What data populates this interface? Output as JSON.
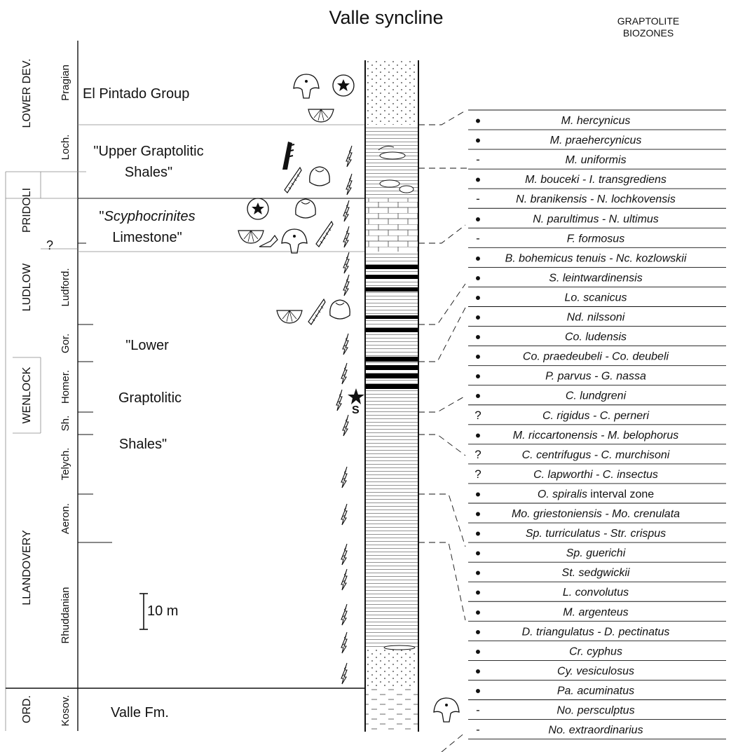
{
  "title": "Valle syncline",
  "biozones_header": [
    "GRAPTOLITE",
    "BIOZONES"
  ],
  "series": [
    {
      "id": "ord",
      "label": "ORD."
    },
    {
      "id": "llandovery",
      "label": "LLANDOVERY"
    },
    {
      "id": "wenlock",
      "label": "WENLOCK"
    },
    {
      "id": "ludlow",
      "label": "LUDLOW"
    },
    {
      "id": "pridoli",
      "label": "PRIDOLI"
    },
    {
      "id": "lower-dev",
      "label": "LOWER DEV."
    }
  ],
  "stages": [
    {
      "id": "kosov",
      "label": "Kosov."
    },
    {
      "id": "rhuddanian",
      "label": "Rhuddanian"
    },
    {
      "id": "aeron",
      "label": "Aeron."
    },
    {
      "id": "telych",
      "label": "Telych."
    },
    {
      "id": "sh",
      "label": "Sh."
    },
    {
      "id": "homer",
      "label": "Homer."
    },
    {
      "id": "gor",
      "label": "Gor."
    },
    {
      "id": "ludford",
      "label": "Ludford."
    },
    {
      "id": "loch",
      "label": "Loch."
    },
    {
      "id": "pragian",
      "label": "Pragian"
    }
  ],
  "units": {
    "el_pintado": "El Pintado Group",
    "upper_grapt_1": "\"Upper Graptolitic",
    "upper_grapt_2": "Shales\"",
    "scypho_quote": "\"",
    "scypho_name": "Scyphocrinites",
    "scypho_2": "Limestone\"",
    "lower_1": "\"Lower",
    "lower_2": "Graptolitic",
    "lower_3": "Shales\"",
    "valle_fm": "Valle Fm."
  },
  "question_mark": "?",
  "scale_label": "10 m",
  "sample_label": "S",
  "biozones": [
    {
      "marker": "•",
      "name": "M. hercynicus"
    },
    {
      "marker": "•",
      "name": "M. praehercynicus"
    },
    {
      "marker": "-",
      "name": "M. uniformis"
    },
    {
      "marker": "•",
      "name": "M. bouceki - I. transgrediens"
    },
    {
      "marker": "-",
      "name": "N. branikensis - N. lochkovensis"
    },
    {
      "marker": "•",
      "name": "N. parultimus - N. ultimus"
    },
    {
      "marker": "-",
      "name": "F. formosus"
    },
    {
      "marker": "•",
      "name": "B. bohemicus tenuis - Nc. kozlowskii"
    },
    {
      "marker": "•",
      "name": "S. leintwardinensis"
    },
    {
      "marker": "•",
      "name": "Lo. scanicus"
    },
    {
      "marker": "•",
      "name": "Nd. nilssoni"
    },
    {
      "marker": "•",
      "name": "Co. ludensis"
    },
    {
      "marker": "•",
      "name": "Co. praedeubeli - Co. deubeli"
    },
    {
      "marker": "•",
      "name": "P. parvus - G. nassa"
    },
    {
      "marker": "•",
      "name": "C. lundgreni"
    },
    {
      "marker": "?",
      "name": "C. rigidus - C. perneri"
    },
    {
      "marker": "•",
      "name": "M. riccartonensis - M. belophorus"
    },
    {
      "marker": "?",
      "name": "C. centrifugus - C. murchisoni"
    },
    {
      "marker": "?",
      "name": "C. lapworthi - C. insectus"
    },
    {
      "marker": "•",
      "name": "O. spiralis",
      "suffix": "interval zone"
    },
    {
      "marker": "•",
      "name": "Mo. griestoniensis - Mo. crenulata"
    },
    {
      "marker": "•",
      "name": "Sp. turriculatus - Str. crispus"
    },
    {
      "marker": "•",
      "name": "Sp. guerichi"
    },
    {
      "marker": "•",
      "name": "St. sedgwickii"
    },
    {
      "marker": "•",
      "name": "L. convolutus"
    },
    {
      "marker": "•",
      "name": "M. argenteus"
    },
    {
      "marker": "•",
      "name": "D. triangulatus - D. pectinatus"
    },
    {
      "marker": "•",
      "name": "Cr. cyphus"
    },
    {
      "marker": "•",
      "name": "Cy. vesiculosus"
    },
    {
      "marker": "•",
      "name": "Pa. acuminatus"
    },
    {
      "marker": "-",
      "name": "No. persculptus"
    },
    {
      "marker": "-",
      "name": "No. extraordinarius"
    }
  ]
}
